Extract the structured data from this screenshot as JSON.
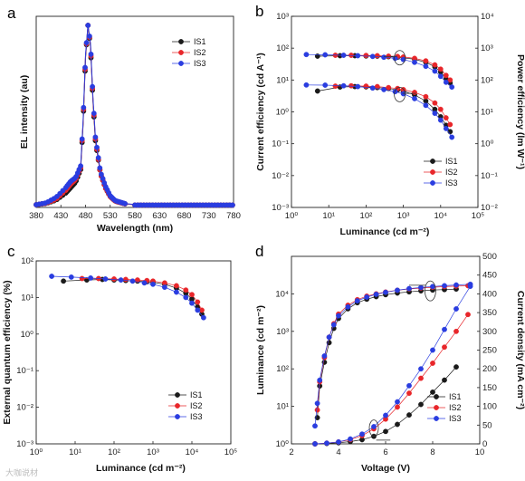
{
  "figure": {
    "watermark": "大咖说材"
  },
  "colors": {
    "IS1": "#1a1a1a",
    "IS2": "#e8262a",
    "IS3": "#2a3de0"
  },
  "chart_data": [
    {
      "id": "a",
      "panel_label": "a",
      "type": "line",
      "xlabel": "Wavelength (nm)",
      "ylabel": "EL intensity (au)",
      "xlim": [
        380,
        780
      ],
      "x_ticks": [
        "380",
        "430",
        "480",
        "530",
        "580",
        "630",
        "680",
        "730",
        "780"
      ],
      "legend": {
        "position": "top-right",
        "entries": [
          "IS1",
          "IS2",
          "IS3"
        ]
      },
      "series": [
        {
          "name": "IS1",
          "x": [
            380,
            400,
            420,
            440,
            450,
            460,
            470,
            475,
            480,
            485,
            490,
            495,
            500,
            510,
            520,
            530,
            540,
            560,
            580,
            620,
            680,
            780
          ],
          "y": [
            0.005,
            0.012,
            0.03,
            0.07,
            0.1,
            0.13,
            0.2,
            0.45,
            0.82,
            1.0,
            0.88,
            0.58,
            0.36,
            0.18,
            0.1,
            0.05,
            0.025,
            0.01,
            0.005,
            0.003,
            0.002,
            0.002
          ]
        },
        {
          "name": "IS2",
          "x": [
            380,
            400,
            420,
            440,
            450,
            460,
            470,
            475,
            480,
            485,
            490,
            495,
            500,
            510,
            520,
            530,
            540,
            560,
            580,
            620,
            680,
            780
          ],
          "y": [
            0.005,
            0.013,
            0.035,
            0.085,
            0.12,
            0.145,
            0.21,
            0.46,
            0.83,
            1.0,
            0.89,
            0.59,
            0.37,
            0.18,
            0.1,
            0.05,
            0.025,
            0.01,
            0.005,
            0.003,
            0.002,
            0.002
          ]
        },
        {
          "name": "IS3",
          "x": [
            380,
            400,
            420,
            440,
            450,
            460,
            470,
            475,
            480,
            485,
            490,
            495,
            500,
            510,
            520,
            530,
            540,
            560,
            580,
            620,
            680,
            780
          ],
          "y": [
            0.005,
            0.015,
            0.045,
            0.1,
            0.135,
            0.155,
            0.22,
            0.47,
            0.84,
            1.0,
            0.9,
            0.6,
            0.38,
            0.19,
            0.11,
            0.055,
            0.028,
            0.011,
            0.006,
            0.003,
            0.002,
            0.002
          ]
        }
      ]
    },
    {
      "id": "b",
      "panel_label": "b",
      "type": "scatter",
      "xlabel": "Luminance (cd m⁻²)",
      "ylabel": "Current efficiency (cd A⁻¹)",
      "y2label": "Power efficiency (lm W⁻¹)",
      "xscale": "log",
      "yscale": "log",
      "xlim": [
        1,
        100000
      ],
      "ylim": [
        0.001,
        1000
      ],
      "y2lim": [
        0.01,
        10000
      ],
      "x_ticks": [
        "10⁰",
        "10¹",
        "10²",
        "10³",
        "10⁴",
        "10⁵"
      ],
      "y_ticks": [
        "10⁻³",
        "10⁻²",
        "10⁻¹",
        "10⁰",
        "10¹",
        "10²",
        "10³"
      ],
      "y2_ticks": [
        "10⁻²",
        "10⁻¹",
        "10⁰",
        "10¹",
        "10²",
        "10³",
        "10⁴"
      ],
      "legend": {
        "position": "bottom-right",
        "entries": [
          "IS1",
          "IS2",
          "IS3"
        ]
      },
      "series": [
        {
          "name": "IS1",
          "axis": "left",
          "quantity": "current efficiency",
          "x": [
            5,
            20,
            50,
            100,
            200,
            400,
            700,
            1000,
            2000,
            4000,
            7000,
            10000,
            14000,
            18000
          ],
          "y": [
            56,
            58,
            58,
            57,
            56,
            54,
            52,
            50,
            45,
            36,
            26,
            18,
            11,
            8
          ]
        },
        {
          "name": "IS2",
          "axis": "left",
          "quantity": "current efficiency",
          "x": [
            15,
            40,
            100,
            200,
            400,
            700,
            1000,
            2000,
            4000,
            7000,
            10000,
            14000,
            18000
          ],
          "y": [
            60,
            60,
            59,
            58,
            56,
            55,
            53,
            48,
            40,
            30,
            22,
            14,
            10
          ]
        },
        {
          "name": "IS3",
          "axis": "left",
          "quantity": "current efficiency",
          "x": [
            2.5,
            8,
            25,
            60,
            150,
            300,
            600,
            1000,
            2000,
            4000,
            7000,
            10000,
            14000,
            20000
          ],
          "y": [
            63,
            62,
            60,
            58,
            55,
            52,
            48,
            44,
            36,
            27,
            19,
            13,
            8.5,
            6
          ]
        },
        {
          "name": "IS1",
          "axis": "right",
          "quantity": "power efficiency",
          "x": [
            5,
            20,
            50,
            100,
            200,
            400,
            700,
            1000,
            2000,
            4000,
            7000,
            10000,
            14000,
            18000
          ],
          "y": [
            45,
            60,
            62,
            61,
            58,
            54,
            49,
            45,
            34,
            22,
            12,
            7,
            3.8,
            2.4
          ]
        },
        {
          "name": "IS2",
          "axis": "right",
          "quantity": "power efficiency",
          "x": [
            15,
            40,
            100,
            200,
            400,
            700,
            1000,
            2000,
            4000,
            7000,
            10000,
            14000,
            18000
          ],
          "y": [
            64,
            66,
            64,
            62,
            58,
            54,
            50,
            41,
            30,
            19,
            12,
            6.5,
            4
          ]
        },
        {
          "name": "IS3",
          "axis": "right",
          "quantity": "power efficiency",
          "x": [
            2.5,
            8,
            25,
            60,
            150,
            300,
            600,
            1000,
            2000,
            4000,
            7000,
            10000,
            14000,
            20000
          ],
          "y": [
            70,
            69,
            66,
            62,
            56,
            50,
            43,
            37,
            26,
            16,
            9,
            5.5,
            3,
            1.6
          ]
        }
      ]
    },
    {
      "id": "c",
      "panel_label": "c",
      "type": "scatter",
      "xlabel": "Luminance (cd m⁻²)",
      "ylabel": "External quantum efficiency (%)",
      "xscale": "log",
      "yscale": "log",
      "xlim": [
        1,
        100000
      ],
      "ylim": [
        0.001,
        100
      ],
      "x_ticks": [
        "10⁰",
        "10¹",
        "10²",
        "10³",
        "10⁴",
        "10⁵"
      ],
      "y_ticks": [
        "10⁻³",
        "10⁻²",
        "10⁻¹",
        "10⁰",
        "10¹",
        "10²"
      ],
      "legend": {
        "position": "bottom-right",
        "entries": [
          "IS1",
          "IS2",
          "IS3"
        ]
      },
      "series": [
        {
          "name": "IS1",
          "x": [
            5,
            20,
            50,
            100,
            200,
            400,
            700,
            1000,
            2000,
            4000,
            7000,
            10000,
            14000,
            18000
          ],
          "y": [
            28,
            30,
            31,
            30,
            29,
            28,
            27,
            26,
            23,
            18,
            13,
            9,
            5.5,
            3.5
          ]
        },
        {
          "name": "IS2",
          "x": [
            15,
            40,
            100,
            200,
            400,
            700,
            1000,
            2000,
            4000,
            7000,
            10000,
            14000,
            18000
          ],
          "y": [
            33,
            33,
            32,
            31,
            30,
            29,
            28,
            25,
            21,
            16,
            12,
            7.5,
            4.5
          ]
        },
        {
          "name": "IS3",
          "x": [
            2.5,
            8,
            25,
            60,
            150,
            300,
            600,
            1000,
            2000,
            4000,
            7000,
            10000,
            14000,
            20000
          ],
          "y": [
            38,
            36,
            34,
            32,
            30,
            28,
            25,
            23,
            19,
            14,
            10,
            7,
            4.5,
            2.8
          ]
        }
      ]
    },
    {
      "id": "d",
      "panel_label": "d",
      "type": "scatter",
      "xlabel": "Voltage (V)",
      "ylabel": "Luminance (cd m⁻²)",
      "y2label": "Current density (mA cm⁻²)",
      "yscale": "log",
      "xlim": [
        2,
        10
      ],
      "ylim": [
        1,
        100000
      ],
      "y2lim": [
        0,
        500
      ],
      "x_ticks": [
        "2",
        "4",
        "6",
        "8",
        "10"
      ],
      "y_ticks": [
        "10⁰",
        "10¹",
        "10²",
        "10³",
        "10⁴"
      ],
      "y2_ticks": [
        "0",
        "50",
        "100",
        "150",
        "200",
        "250",
        "300",
        "350",
        "400",
        "450",
        "500"
      ],
      "legend": {
        "position": "bottom-right",
        "entries": [
          "IS1",
          "IS2",
          "IS3"
        ]
      },
      "series": [
        {
          "name": "IS1",
          "axis": "left",
          "quantity": "luminance",
          "x": [
            3.1,
            3.2,
            3.4,
            3.6,
            3.8,
            4.0,
            4.4,
            4.8,
            5.2,
            5.6,
            6.0,
            6.5,
            7.0,
            7.5,
            8.0,
            8.5,
            9.0
          ],
          "y": [
            5,
            35,
            150,
            500,
            1200,
            2200,
            4000,
            5800,
            7200,
            8400,
            9500,
            10500,
            11300,
            12000,
            12600,
            13000,
            13400
          ]
        },
        {
          "name": "IS2",
          "axis": "left",
          "quantity": "luminance",
          "x": [
            3.1,
            3.2,
            3.4,
            3.6,
            3.8,
            4.0,
            4.4,
            4.8,
            5.2,
            5.6,
            6.0,
            6.5,
            7.0,
            7.5,
            8.0,
            8.5,
            9.0,
            9.5
          ],
          "y": [
            8,
            45,
            200,
            700,
            1600,
            2900,
            5000,
            7000,
            8700,
            10000,
            11200,
            12500,
            13500,
            14300,
            15000,
            15600,
            16000,
            16500
          ]
        },
        {
          "name": "IS3",
          "axis": "left",
          "quantity": "luminance",
          "x": [
            3.0,
            3.1,
            3.2,
            3.4,
            3.6,
            3.8,
            4.0,
            4.4,
            4.8,
            5.2,
            5.6,
            6.0,
            6.5,
            7.0,
            7.5,
            8.0,
            8.5,
            9.0,
            9.6
          ],
          "y": [
            3,
            12,
            50,
            220,
            700,
            1500,
            2600,
            4500,
            6500,
            8200,
            9700,
            11000,
            12500,
            13800,
            14800,
            15700,
            16500,
            17200,
            18000
          ]
        },
        {
          "name": "IS1",
          "axis": "right",
          "quantity": "current density",
          "x": [
            3.0,
            3.5,
            4.0,
            4.5,
            5.0,
            5.5,
            6.0,
            6.5,
            7.0,
            7.5,
            8.0,
            8.5,
            9.0
          ],
          "y": [
            0,
            1,
            3,
            6,
            11,
            20,
            33,
            52,
            77,
            105,
            138,
            170,
            205
          ]
        },
        {
          "name": "IS2",
          "axis": "right",
          "quantity": "current density",
          "x": [
            3.0,
            3.5,
            4.0,
            4.5,
            5.0,
            5.5,
            6.0,
            6.5,
            7.0,
            7.5,
            8.0,
            8.5,
            9.0,
            9.5
          ],
          "y": [
            0,
            2,
            5,
            11,
            22,
            40,
            66,
            98,
            135,
            175,
            215,
            258,
            300,
            345
          ]
        },
        {
          "name": "IS3",
          "axis": "right",
          "quantity": "current density",
          "x": [
            3.0,
            3.5,
            4.0,
            4.5,
            5.0,
            5.5,
            6.0,
            6.5,
            7.0,
            7.5,
            8.0,
            8.5,
            9.0,
            9.6
          ],
          "y": [
            0,
            2,
            5,
            13,
            26,
            46,
            76,
            112,
            155,
            200,
            250,
            305,
            360,
            420
          ]
        }
      ]
    }
  ]
}
